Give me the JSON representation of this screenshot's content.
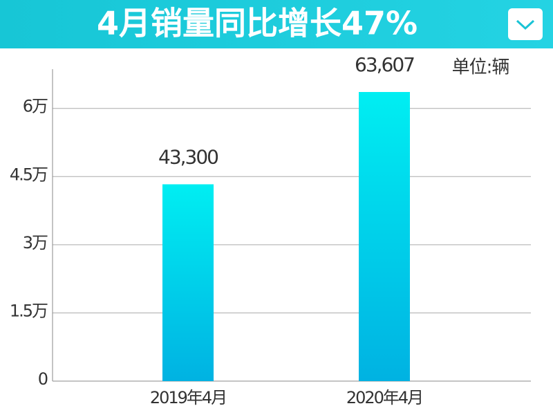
{
  "chart_data": {
    "type": "bar",
    "title": "4月销量同比增长47%",
    "unit_label": "单位:辆",
    "categories": [
      "2019年4月",
      "2020年4月"
    ],
    "values": [
      43300,
      63607
    ],
    "value_labels": [
      "43,300",
      "63,607"
    ],
    "color": "#00c8e8",
    "ylim": [
      0,
      70000
    ],
    "yticks": [
      0,
      {
        "value": 15000,
        "label": "1.5万"
      },
      {
        "value": 30000,
        "label": "3万"
      },
      {
        "value": 45000,
        "label": "4.5万"
      },
      {
        "value": 60000,
        "label": "6万"
      }
    ],
    "grid": true
  }
}
